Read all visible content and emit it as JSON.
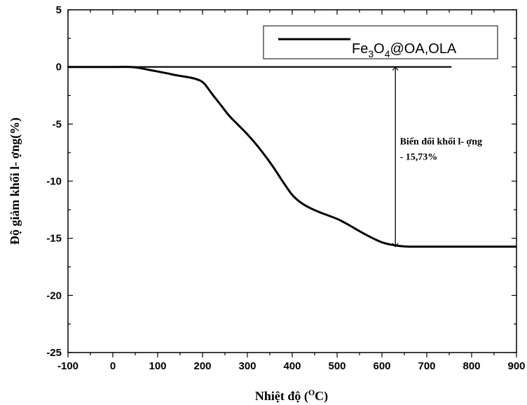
{
  "chart_data": {
    "type": "line",
    "xlabel": {
      "main": "Nhiệt độ (",
      "sup": "O",
      "rest": "C)"
    },
    "ylabel": "Độ giảm khối l- ợng(%)",
    "xlim": [
      -100,
      900
    ],
    "ylim": [
      -25,
      5
    ],
    "xticks": [
      -100,
      0,
      100,
      200,
      300,
      400,
      500,
      600,
      700,
      800,
      900
    ],
    "yticks": [
      5,
      0,
      -5,
      -10,
      -15,
      -20,
      -25
    ],
    "x_minor_step": 50,
    "y_minor_step": 2.5,
    "series": [
      {
        "name": {
          "base": "Fe",
          "sub1": "3",
          "mid": "O",
          "sub2": "4",
          "rest": "@OA,OLA"
        },
        "color": "#000000",
        "points": [
          [
            -100,
            0
          ],
          [
            0,
            0
          ],
          [
            40,
            0
          ],
          [
            60,
            -0.1
          ],
          [
            80,
            -0.25
          ],
          [
            100,
            -0.4
          ],
          [
            120,
            -0.55
          ],
          [
            140,
            -0.72
          ],
          [
            160,
            -0.85
          ],
          [
            180,
            -1.0
          ],
          [
            195,
            -1.2
          ],
          [
            205,
            -1.5
          ],
          [
            220,
            -2.3
          ],
          [
            240,
            -3.3
          ],
          [
            260,
            -4.3
          ],
          [
            280,
            -5.1
          ],
          [
            300,
            -5.9
          ],
          [
            320,
            -6.8
          ],
          [
            340,
            -7.8
          ],
          [
            360,
            -8.9
          ],
          [
            380,
            -10.1
          ],
          [
            400,
            -11.2
          ],
          [
            420,
            -11.9
          ],
          [
            440,
            -12.35
          ],
          [
            460,
            -12.7
          ],
          [
            480,
            -13.0
          ],
          [
            500,
            -13.3
          ],
          [
            520,
            -13.7
          ],
          [
            540,
            -14.15
          ],
          [
            560,
            -14.6
          ],
          [
            580,
            -15.0
          ],
          [
            600,
            -15.35
          ],
          [
            620,
            -15.55
          ],
          [
            640,
            -15.68
          ],
          [
            660,
            -15.73
          ],
          [
            700,
            -15.73
          ],
          [
            800,
            -15.73
          ],
          [
            900,
            -15.73
          ]
        ]
      },
      {
        "name": "",
        "color": "#000000",
        "points": [
          [
            -100,
            0
          ],
          [
            755,
            0
          ]
        ]
      }
    ],
    "annotation": {
      "lines": [
        "Biến đổi khối l- ợng",
        "- 15,73%"
      ],
      "arrow_x": 630,
      "arrow_from": 0,
      "arrow_to": -15.73,
      "text_x": 640,
      "text_y": -6.8
    },
    "legend": {
      "placement": "top-right"
    }
  }
}
